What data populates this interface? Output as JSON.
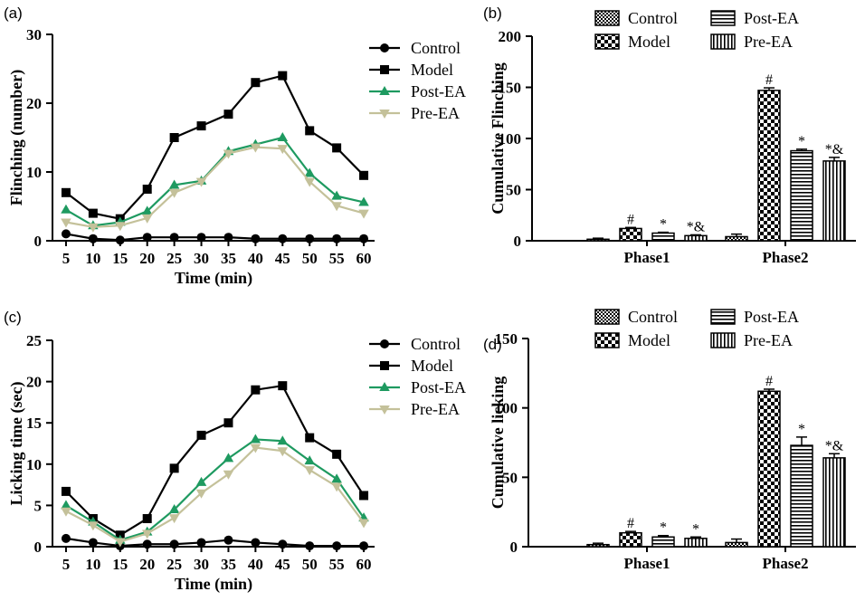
{
  "colors": {
    "control": "#000000",
    "model": "#000000",
    "post_ea": "#1e9a60",
    "pre_ea": "#c4c19a"
  },
  "chart_data": [
    {
      "panel": "(a)",
      "type": "line",
      "xlabel": "Time (min)",
      "ylabel": "Flinching (number)",
      "x": [
        5,
        10,
        15,
        20,
        25,
        30,
        35,
        40,
        45,
        50,
        55,
        60
      ],
      "xlim": [
        2.5,
        62
      ],
      "ylim": [
        0,
        30
      ],
      "yticks": [
        0,
        10,
        20,
        30
      ],
      "series": [
        {
          "name": "Control",
          "marker": "circle",
          "color": "#000000",
          "values": [
            1.0,
            0.3,
            0.1,
            0.5,
            0.5,
            0.5,
            0.5,
            0.3,
            0.3,
            0.3,
            0.3,
            0.3
          ]
        },
        {
          "name": "Model",
          "marker": "square",
          "color": "#000000",
          "values": [
            7.0,
            4.0,
            3.2,
            7.5,
            15.0,
            16.7,
            18.4,
            23.0,
            24.0,
            16.0,
            13.5,
            9.5
          ]
        },
        {
          "name": "Post-EA",
          "marker": "triangle-up",
          "color": "#1e9a60",
          "values": [
            4.5,
            2.2,
            2.7,
            4.3,
            8.1,
            8.7,
            13.0,
            14.0,
            15.0,
            9.8,
            6.5,
            5.6
          ]
        },
        {
          "name": "Pre-EA",
          "marker": "triangle-down",
          "color": "#c4c19a",
          "values": [
            2.7,
            2.0,
            2.2,
            3.3,
            7.0,
            8.6,
            12.7,
            13.6,
            13.4,
            8.6,
            5.1,
            4.0
          ]
        }
      ],
      "legend": "top-right"
    },
    {
      "panel": "(b)",
      "type": "bar",
      "xlabel": "",
      "ylabel": "Cumulative Flinching",
      "categories": [
        "Phase1",
        "Phase2"
      ],
      "ylim": [
        0,
        200
      ],
      "yticks": [
        0,
        50,
        100,
        150,
        200
      ],
      "series": [
        {
          "name": "Control",
          "pattern": "fine-check",
          "values": [
            1.5,
            4
          ],
          "errors": [
            1,
            2.5
          ],
          "annotations": [
            "",
            ""
          ]
        },
        {
          "name": "Model",
          "pattern": "checker",
          "values": [
            12,
            147
          ],
          "errors": [
            1,
            2.5
          ],
          "annotations": [
            "#",
            "#"
          ]
        },
        {
          "name": "Post-EA",
          "pattern": "h-stripes",
          "values": [
            7.5,
            88
          ],
          "errors": [
            0.8,
            1.5
          ],
          "annotations": [
            "*",
            "*"
          ]
        },
        {
          "name": "Pre-EA",
          "pattern": "v-stripes",
          "values": [
            5,
            78
          ],
          "errors": [
            0.8,
            3.5
          ],
          "annotations": [
            "*&",
            "*&"
          ]
        }
      ],
      "legend": "top"
    },
    {
      "panel": "(c)",
      "type": "line",
      "xlabel": "Time (min)",
      "ylabel": "Licking time (sec)",
      "x": [
        5,
        10,
        15,
        20,
        25,
        30,
        35,
        40,
        45,
        50,
        55,
        60
      ],
      "xlim": [
        2.5,
        62
      ],
      "ylim": [
        0,
        25
      ],
      "yticks": [
        0,
        5,
        10,
        15,
        20,
        25
      ],
      "series": [
        {
          "name": "Control",
          "marker": "circle",
          "color": "#000000",
          "values": [
            1.0,
            0.5,
            0.1,
            0.3,
            0.3,
            0.5,
            0.8,
            0.5,
            0.3,
            0.1,
            0.1,
            0.1
          ]
        },
        {
          "name": "Model",
          "marker": "square",
          "color": "#000000",
          "values": [
            6.7,
            3.4,
            1.4,
            3.4,
            9.5,
            13.5,
            15.0,
            19.0,
            19.5,
            13.2,
            11.2,
            6.2
          ]
        },
        {
          "name": "Post-EA",
          "marker": "triangle-up",
          "color": "#1e9a60",
          "values": [
            5.0,
            3.0,
            0.8,
            1.8,
            4.5,
            7.8,
            10.7,
            13.0,
            12.8,
            10.4,
            8.2,
            3.5
          ]
        },
        {
          "name": "Pre-EA",
          "marker": "triangle-down",
          "color": "#c4c19a",
          "values": [
            4.3,
            2.6,
            0.6,
            1.6,
            3.5,
            6.5,
            8.8,
            12.0,
            11.6,
            9.3,
            7.3,
            2.9
          ]
        }
      ],
      "legend": "top-right"
    },
    {
      "panel": "(d)",
      "type": "bar",
      "xlabel": "",
      "ylabel": "Cumulative licking",
      "categories": [
        "Phase1",
        "Phase2"
      ],
      "ylim": [
        0,
        150
      ],
      "yticks": [
        0,
        50,
        100,
        150
      ],
      "series": [
        {
          "name": "Control",
          "pattern": "fine-check",
          "values": [
            1.5,
            3
          ],
          "errors": [
            1,
            2.5
          ],
          "annotations": [
            "",
            ""
          ]
        },
        {
          "name": "Model",
          "pattern": "checker",
          "values": [
            10,
            112
          ],
          "errors": [
            1,
            1.5
          ],
          "annotations": [
            "#",
            "#"
          ]
        },
        {
          "name": "Post-EA",
          "pattern": "h-stripes",
          "values": [
            7,
            73
          ],
          "errors": [
            1,
            6
          ],
          "annotations": [
            "*",
            "*"
          ]
        },
        {
          "name": "Pre-EA",
          "pattern": "v-stripes",
          "values": [
            6,
            64
          ],
          "errors": [
            1,
            3
          ],
          "annotations": [
            "*",
            "*&"
          ]
        }
      ],
      "legend": "top"
    }
  ]
}
